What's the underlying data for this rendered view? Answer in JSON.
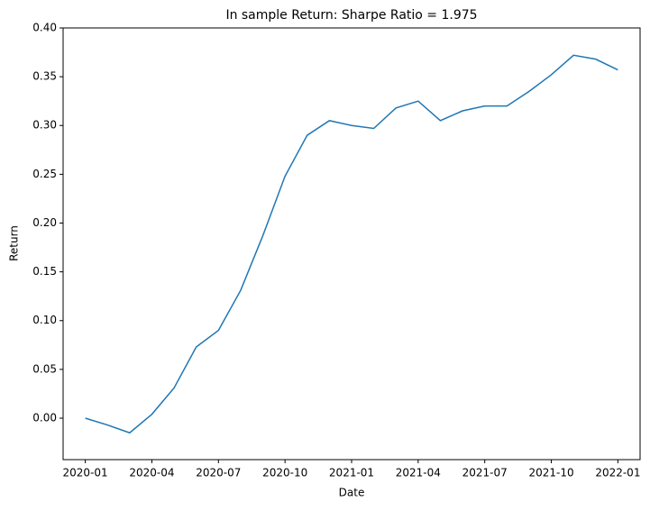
{
  "chart_data": {
    "type": "line",
    "title": "In sample Return: Sharpe Ratio = 1.975",
    "xlabel": "Date",
    "ylabel": "Return",
    "x": [
      "2020-01",
      "2020-02",
      "2020-03",
      "2020-04",
      "2020-05",
      "2020-06",
      "2020-07",
      "2020-08",
      "2020-09",
      "2020-10",
      "2020-11",
      "2020-12",
      "2021-01",
      "2021-02",
      "2021-03",
      "2021-04",
      "2021-05",
      "2021-06",
      "2021-07",
      "2021-08",
      "2021-09",
      "2021-10",
      "2021-11",
      "2021-12",
      "2022-01"
    ],
    "series": [
      {
        "name": "Return",
        "color": "#1f77b4",
        "values": [
          0.0,
          -0.007,
          -0.015,
          0.004,
          0.031,
          0.073,
          0.09,
          0.131,
          0.187,
          0.248,
          0.29,
          0.305,
          0.3,
          0.297,
          0.318,
          0.325,
          0.305,
          0.315,
          0.32,
          0.32,
          0.335,
          0.352,
          0.372,
          0.368,
          0.357
        ]
      }
    ],
    "xlim": [
      "2019-12",
      "2022-02"
    ],
    "xticks": [
      "2020-01",
      "2020-04",
      "2020-07",
      "2020-10",
      "2021-01",
      "2021-04",
      "2021-07",
      "2021-10",
      "2022-01"
    ],
    "ylim": [
      -0.0425,
      0.4
    ],
    "yticks": [
      {
        "value": 0,
        "label": "0.00"
      },
      0.05,
      {
        "value": 0.1,
        "label": "0.10"
      },
      0.15,
      {
        "value": 0.2,
        "label": "0.20"
      },
      0.25,
      {
        "value": 0.3,
        "label": "0.30"
      },
      0.35,
      {
        "value": 0.4,
        "label": "0.40"
      }
    ]
  }
}
